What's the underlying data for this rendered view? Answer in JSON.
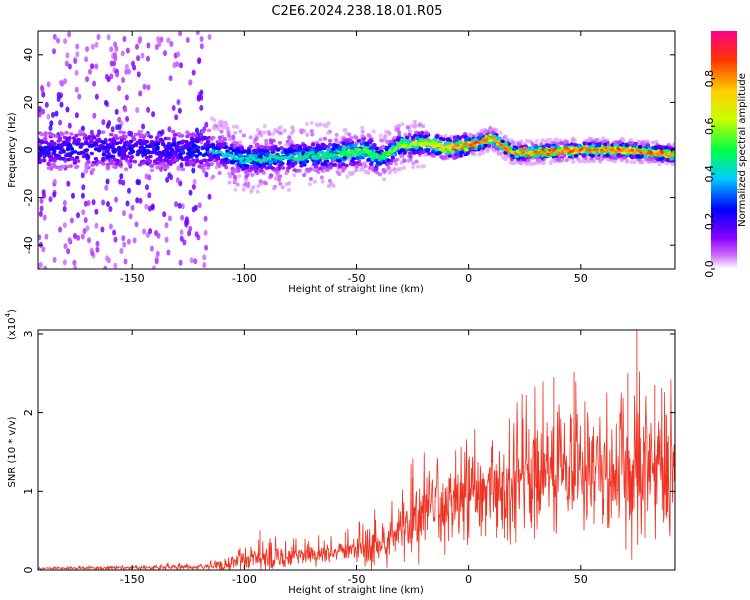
{
  "title": "C2E6.2024.238.18.01.R05",
  "colors": {
    "spectrogram_background": "#ffffff",
    "snr_line": "#ee3322",
    "axis": "#000000"
  },
  "chart_data": [
    {
      "type": "heatmap",
      "name": "spectrogram",
      "xlabel": "Height of straight line (km)",
      "ylabel": "Frequency (Hz)",
      "xlim": [
        -192,
        92
      ],
      "ylim": [
        -50,
        50
      ],
      "xticks": [
        -150,
        -100,
        -50,
        0,
        50
      ],
      "yticks": [
        -40,
        -20,
        0,
        20,
        40
      ],
      "colorbar": {
        "label": "Normalized spectral amplitude",
        "range": [
          0.0,
          1.0
        ],
        "ticks": [
          "0.0",
          "0.2",
          "0.4",
          "0.6",
          "0.8"
        ],
        "tick_values": [
          0.0,
          0.2,
          0.4,
          0.6,
          0.8
        ],
        "colormap": [
          "#ffffff",
          "#8800ff",
          "#0000ff",
          "#00ffff",
          "#00ff00",
          "#ffff00",
          "#ff8800",
          "#ff0000",
          "#ff0088"
        ]
      },
      "ridge": {
        "description": "frequency centre of the signal ridge versus height",
        "heights": [
          -192,
          -150,
          -115,
          -100,
          -80,
          -60,
          -45,
          -40,
          -30,
          -20,
          -10,
          0,
          5,
          10,
          15,
          20,
          30,
          50,
          70,
          92
        ],
        "frequency_hz": [
          0,
          0,
          0,
          -4,
          -3,
          -2,
          0,
          -4,
          2,
          3,
          1,
          2,
          3,
          5,
          2,
          -1,
          -1,
          0,
          0,
          -2
        ],
        "peak_amplitude": [
          0.35,
          0.35,
          0.4,
          0.45,
          0.45,
          0.5,
          0.55,
          0.5,
          0.6,
          0.65,
          0.75,
          0.85,
          0.9,
          0.8,
          0.85,
          0.8,
          0.85,
          0.85,
          0.85,
          0.85
        ]
      }
    },
    {
      "type": "line",
      "name": "snr",
      "xlabel": "Height of straight line (km)",
      "ylabel": "SNR (10 * v/v)",
      "y_multiplier": "(x10",
      "y_multiplier_exp": "4",
      "y_multiplier_close": ")",
      "xlim": [
        -192,
        92
      ],
      "ylim": [
        0,
        3.05
      ],
      "xticks": [
        -150,
        -100,
        -50,
        0,
        50
      ],
      "yticks": [
        0,
        1,
        2,
        3
      ],
      "envelope": {
        "description": "approximate mean SNR (x10^4) and spike amplitude versus height",
        "heights": [
          -192,
          -150,
          -120,
          -105,
          -95,
          -80,
          -60,
          -50,
          -40,
          -30,
          -20,
          -10,
          0,
          10,
          20,
          30,
          40,
          50,
          60,
          70,
          80,
          92
        ],
        "mean": [
          0.02,
          0.03,
          0.04,
          0.08,
          0.15,
          0.18,
          0.22,
          0.3,
          0.35,
          0.55,
          0.7,
          0.8,
          0.95,
          1.0,
          1.05,
          1.2,
          1.3,
          1.35,
          1.3,
          1.25,
          1.3,
          1.35
        ],
        "spread": [
          0.01,
          0.02,
          0.03,
          0.08,
          0.15,
          0.12,
          0.12,
          0.15,
          0.25,
          0.35,
          0.4,
          0.45,
          0.45,
          0.5,
          0.55,
          0.6,
          0.65,
          0.7,
          0.65,
          0.7,
          0.7,
          0.7
        ]
      },
      "notable_peaks": [
        {
          "x": -93,
          "y": 0.5
        },
        {
          "x": -55,
          "y": 0.48
        },
        {
          "x": -25,
          "y": 1.17
        },
        {
          "x": 0,
          "y": 1.4
        },
        {
          "x": 38,
          "y": 2.45
        },
        {
          "x": 47,
          "y": 2.52
        },
        {
          "x": 71,
          "y": 2.5
        },
        {
          "x": 75,
          "y": 3.05
        },
        {
          "x": 83,
          "y": 2.35
        },
        {
          "x": 88,
          "y": 1.98
        }
      ]
    }
  ]
}
